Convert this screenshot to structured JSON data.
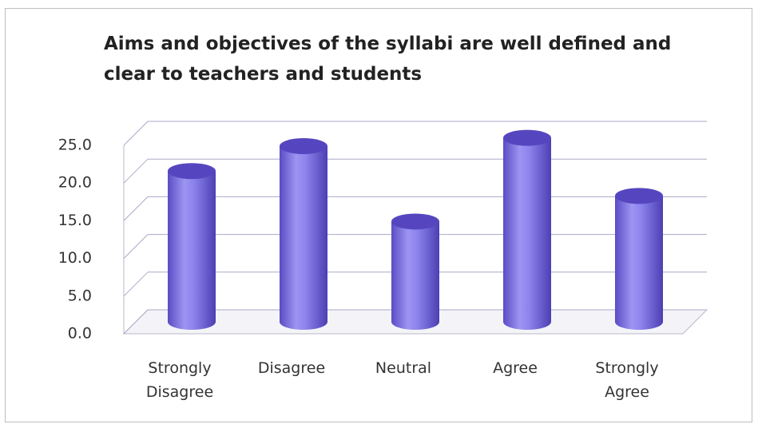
{
  "chart_data": {
    "type": "bar",
    "title": "Aims and objectives of the syllabi are well defined and clear to teachers and students",
    "categories": [
      "Strongly Disagree",
      "Disagree",
      "Neutral",
      "Agree",
      "Strongly Agree"
    ],
    "values": [
      20.0,
      23.3,
      13.3,
      24.4,
      16.7
    ],
    "color": "#7f74e6",
    "ylim": [
      0,
      25
    ],
    "yticks": [
      {
        "value": 0,
        "label": "0.0"
      },
      {
        "value": 5,
        "label": "5.0"
      },
      {
        "value": 10,
        "label": "10.0"
      },
      {
        "value": 15,
        "label": "15.0"
      },
      {
        "value": 20,
        "label": "20.0"
      },
      {
        "value": 25,
        "label": "25.0"
      }
    ],
    "grid": true
  }
}
